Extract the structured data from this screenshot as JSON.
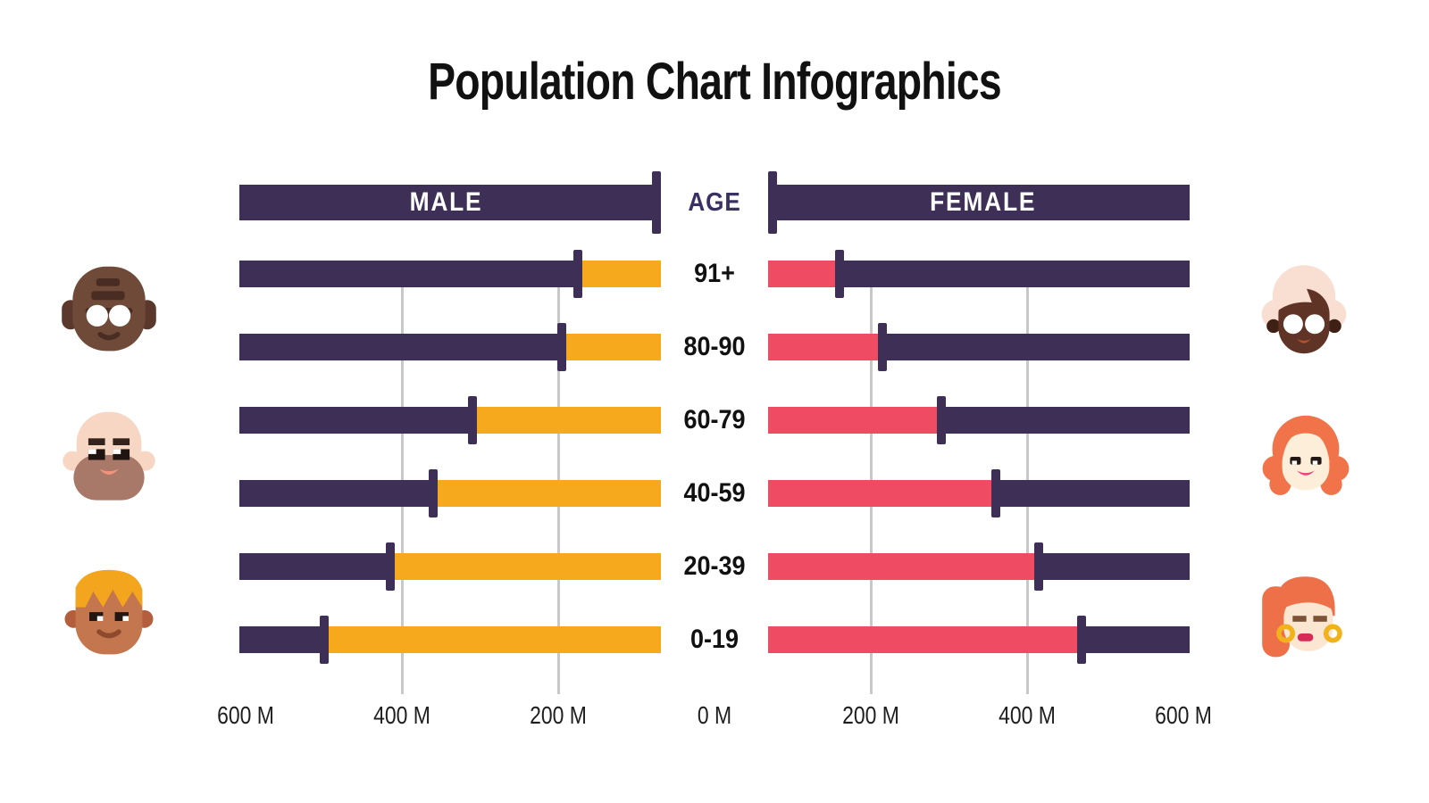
{
  "title": "Population Chart Infographics",
  "chart": {
    "male_header": "MALE",
    "age_header": "AGE",
    "female_header": "FEMALE"
  },
  "chart_data": {
    "type": "bar",
    "subtype": "population-pyramid",
    "title": "Population Chart Infographics",
    "unit": "millions of people",
    "categories": [
      "91+",
      "80-90",
      "60-79",
      "40-59",
      "20-39",
      "0-19"
    ],
    "series": [
      {
        "name": "MALE",
        "side": "left",
        "color": "#f7a91e",
        "values": [
          175,
          195,
          310,
          360,
          415,
          500
        ]
      },
      {
        "name": "FEMALE",
        "side": "right",
        "color": "#ef4b63",
        "values": [
          160,
          215,
          290,
          360,
          415,
          470
        ]
      }
    ],
    "x_axis": {
      "tick_labels": [
        "600 M",
        "400 M",
        "200 M",
        "0 M",
        "200 M",
        "400 M",
        "600 M"
      ],
      "tick_values": [
        -600,
        -400,
        -200,
        0,
        200,
        400,
        600
      ],
      "gridlines_at": [
        -400,
        -200,
        200,
        400
      ],
      "range_each_side": [
        0,
        600
      ],
      "grid": true
    },
    "legend_position": "none",
    "notes": "Each row is a full dark-purple bar from the 600 M edge to near 0; the highlighted segment (yellow = male, pink = female) runs from the value marker toward 0, with a tall purple tick marking the value."
  },
  "colors": {
    "bar_purple": "#3e2f56",
    "male_highlight": "#f7a91e",
    "female_highlight": "#ef4b63",
    "header_text": "#ffffff",
    "age_header_text": "#3b3063",
    "gridline": "#c8c8c8",
    "axis_text": "#1e1e1e",
    "title_text": "#111111",
    "background": "#ffffff"
  },
  "decorations": {
    "left_faces": [
      "elderly-man-dark-skin-glasses",
      "elderly-man-beard",
      "young-man-blonde-hair"
    ],
    "right_faces": [
      "elderly-woman-dark-skin-glasses",
      "woman-orange-wavy-hair",
      "young-woman-ponytail-earrings"
    ]
  }
}
